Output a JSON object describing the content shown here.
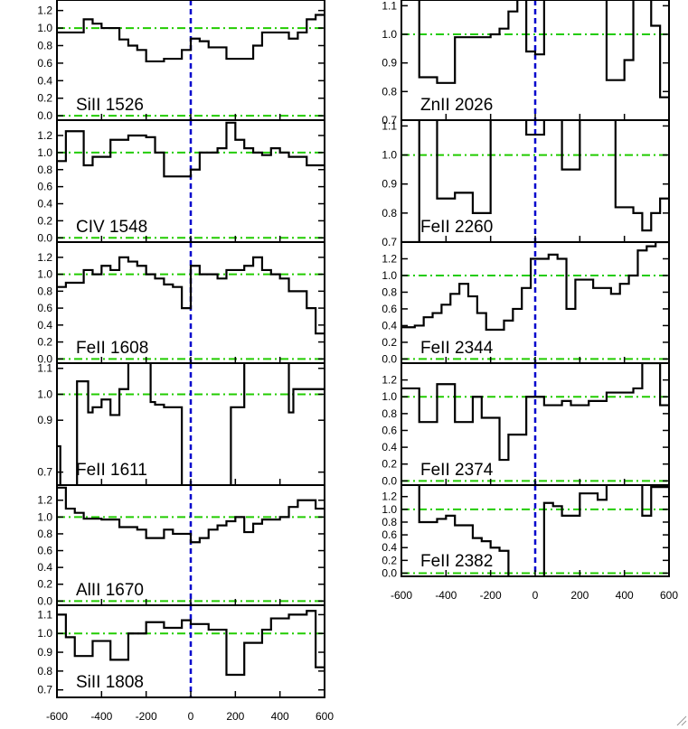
{
  "chart_data": {
    "type": "line",
    "style": {
      "spectrum_color": "#000000",
      "continuum_color": "#22cc00",
      "zero_velocity_color": "#0000cc"
    },
    "xlim": [
      -600,
      600
    ],
    "x_ticks": [
      -600,
      -400,
      -200,
      0,
      200,
      400,
      600
    ],
    "x_tick_labels": [
      "-600",
      "-400",
      "-200",
      "0",
      "200",
      "400",
      "600"
    ],
    "panels": [
      {
        "label": "SiII 1526",
        "column": "left",
        "ylim": [
          -0.05,
          1.32
        ],
        "y_ticks": [
          0.0,
          0.2,
          0.4,
          0.6,
          0.8,
          1.0,
          1.2
        ],
        "y_tick_labels": [
          "0.0",
          "0.2",
          "0.4",
          "0.6",
          "0.8",
          "1.0",
          "1.2"
        ],
        "continuum": [
          0.0,
          1.0
        ],
        "bins": [
          -600,
          -560,
          -520,
          -480,
          -440,
          -400,
          -360,
          -320,
          -280,
          -240,
          -200,
          -160,
          -120,
          -80,
          -40,
          0,
          40,
          80,
          120,
          160,
          200,
          240,
          280,
          320,
          360,
          400,
          440,
          480,
          520,
          560,
          600
        ],
        "flux": [
          0.95,
          0.95,
          0.95,
          1.1,
          1.05,
          1.0,
          1.0,
          0.87,
          0.8,
          0.75,
          0.62,
          0.62,
          0.65,
          0.65,
          0.75,
          0.88,
          0.85,
          0.78,
          0.78,
          0.65,
          0.65,
          0.65,
          0.8,
          0.95,
          0.95,
          0.95,
          0.88,
          0.95,
          1.1,
          1.15
        ]
      },
      {
        "label": "CIV 1548",
        "column": "left",
        "ylim": [
          -0.05,
          1.38
        ],
        "y_ticks": [
          0.0,
          0.2,
          0.4,
          0.6,
          0.8,
          1.0,
          1.2
        ],
        "y_tick_labels": [
          "0.0",
          "0.2",
          "0.4",
          "0.6",
          "0.8",
          "1.0",
          "1.2"
        ],
        "continuum": [
          0.0,
          1.0
        ],
        "bins": [
          -600,
          -560,
          -520,
          -480,
          -440,
          -400,
          -360,
          -320,
          -280,
          -240,
          -200,
          -160,
          -120,
          -80,
          -40,
          0,
          40,
          80,
          120,
          160,
          200,
          240,
          280,
          320,
          360,
          400,
          440,
          480,
          520,
          560,
          600
        ],
        "flux": [
          0.9,
          1.25,
          1.25,
          0.85,
          0.95,
          0.95,
          1.15,
          1.15,
          1.2,
          1.2,
          1.18,
          1.0,
          0.72,
          0.72,
          0.72,
          0.8,
          1.0,
          1.0,
          1.05,
          1.35,
          1.15,
          1.05,
          1.0,
          0.97,
          1.05,
          1.0,
          0.95,
          0.95,
          0.85,
          0.85
        ]
      },
      {
        "label": "FeII 1608",
        "column": "left",
        "ylim": [
          -0.05,
          1.38
        ],
        "y_ticks": [
          0.0,
          0.2,
          0.4,
          0.6,
          0.8,
          1.0,
          1.2
        ],
        "y_tick_labels": [
          "0.0",
          "0.2",
          "0.4",
          "0.6",
          "0.8",
          "1.0",
          "1.2"
        ],
        "continuum": [
          0.0,
          1.0
        ],
        "bins": [
          -600,
          -560,
          -520,
          -480,
          -440,
          -400,
          -360,
          -320,
          -280,
          -240,
          -200,
          -160,
          -120,
          -80,
          -40,
          0,
          40,
          80,
          120,
          160,
          200,
          240,
          280,
          320,
          360,
          400,
          440,
          480,
          520,
          560,
          600
        ],
        "flux": [
          0.85,
          0.9,
          0.9,
          1.05,
          1.0,
          1.1,
          1.05,
          1.2,
          1.15,
          1.1,
          1.0,
          0.95,
          0.88,
          0.85,
          0.6,
          1.1,
          1.0,
          1.0,
          0.95,
          1.05,
          1.05,
          1.1,
          1.2,
          1.05,
          1.0,
          0.95,
          0.8,
          0.8,
          0.6,
          0.3
        ]
      },
      {
        "label": "FeII 1611",
        "column": "left",
        "ylim": [
          0.65,
          1.12
        ],
        "y_ticks": [
          0.7,
          0.9,
          1.0,
          1.1
        ],
        "y_tick_labels": [
          "0.7",
          "0.9",
          "1.0",
          "1.1"
        ],
        "continuum": [
          1.0
        ],
        "bins": [
          -600,
          -585,
          -560,
          -510,
          -460,
          -440,
          -400,
          -360,
          -320,
          -280,
          -240,
          -180,
          -160,
          -120,
          -100,
          -40,
          -20,
          40,
          80,
          120,
          180,
          240,
          300,
          340,
          400,
          440,
          460,
          520,
          570,
          600
        ],
        "flux": [
          0.8,
          0.6,
          0.6,
          1.05,
          0.93,
          0.95,
          0.98,
          0.92,
          1.02,
          1.2,
          1.2,
          0.97,
          0.96,
          0.95,
          0.95,
          0.5,
          0.5,
          0.5,
          0.5,
          0.5,
          0.95,
          1.2,
          1.2,
          1.2,
          1.2,
          0.93,
          1.02,
          1.02,
          1.02
        ]
      },
      {
        "label": "AlII 1670",
        "column": "left",
        "ylim": [
          -0.05,
          1.38
        ],
        "y_ticks": [
          0.0,
          0.2,
          0.4,
          0.6,
          0.8,
          1.0,
          1.2
        ],
        "y_tick_labels": [
          "0.0",
          "0.2",
          "0.4",
          "0.6",
          "0.8",
          "1.0",
          "1.2"
        ],
        "continuum": [
          0.0,
          1.0
        ],
        "bins": [
          -600,
          -560,
          -520,
          -480,
          -440,
          -400,
          -360,
          -320,
          -280,
          -240,
          -200,
          -160,
          -120,
          -80,
          -40,
          0,
          40,
          80,
          120,
          160,
          200,
          240,
          280,
          320,
          360,
          400,
          440,
          480,
          520,
          560,
          600
        ],
        "flux": [
          1.35,
          1.1,
          1.05,
          0.98,
          0.98,
          0.97,
          0.97,
          0.88,
          0.88,
          0.85,
          0.75,
          0.75,
          0.85,
          0.8,
          0.8,
          0.7,
          0.75,
          0.85,
          0.9,
          0.95,
          1.0,
          0.82,
          0.92,
          0.97,
          0.97,
          1.0,
          1.12,
          1.2,
          1.2,
          1.1
        ]
      },
      {
        "label": "SiII 1808",
        "column": "left",
        "ylim": [
          0.66,
          1.15
        ],
        "y_ticks": [
          0.7,
          0.8,
          0.9,
          1.0,
          1.1
        ],
        "y_tick_labels": [
          "0.7",
          "0.8",
          "0.9",
          "1.0",
          "1.1"
        ],
        "continuum": [
          1.0
        ],
        "bins": [
          -600,
          -560,
          -520,
          -480,
          -440,
          -400,
          -360,
          -320,
          -280,
          -240,
          -200,
          -160,
          -120,
          -80,
          -40,
          0,
          40,
          80,
          120,
          160,
          200,
          240,
          280,
          320,
          360,
          400,
          440,
          480,
          520,
          560,
          600
        ],
        "flux": [
          1.1,
          0.98,
          0.88,
          0.88,
          0.96,
          0.96,
          0.86,
          0.86,
          1.0,
          1.0,
          1.06,
          1.06,
          1.03,
          1.03,
          1.07,
          1.05,
          1.05,
          1.02,
          1.02,
          0.78,
          0.78,
          0.95,
          0.95,
          1.02,
          1.08,
          1.08,
          1.1,
          1.1,
          1.12,
          0.82
        ]
      },
      {
        "label": "ZnII 2026",
        "column": "right",
        "ylim": [
          0.7,
          1.12
        ],
        "y_ticks": [
          0.7,
          0.8,
          0.9,
          1.0,
          1.1
        ],
        "y_tick_labels": [
          "0.7",
          "0.8",
          "0.9",
          "1.0",
          "1.1"
        ],
        "continuum": [
          1.0
        ],
        "bins": [
          -600,
          -560,
          -520,
          -480,
          -440,
          -400,
          -360,
          -320,
          -280,
          -240,
          -200,
          -160,
          -120,
          -80,
          -40,
          0,
          40,
          80,
          120,
          160,
          200,
          240,
          280,
          320,
          360,
          400,
          440,
          480,
          520,
          560,
          600
        ],
        "flux": [
          1.15,
          1.15,
          0.85,
          0.85,
          0.83,
          0.83,
          0.99,
          0.99,
          0.99,
          0.99,
          1.0,
          1.02,
          1.08,
          1.15,
          0.94,
          0.93,
          1.15,
          1.15,
          1.15,
          1.15,
          1.15,
          1.15,
          1.15,
          0.84,
          0.84,
          0.91,
          1.15,
          1.15,
          1.03,
          0.78
        ]
      },
      {
        "label": "FeII 2260",
        "column": "right",
        "ylim": [
          0.7,
          1.12
        ],
        "y_ticks": [
          0.7,
          0.8,
          0.9,
          1.0,
          1.1
        ],
        "y_tick_labels": [
          "0.7",
          "0.8",
          "0.9",
          "1.0",
          "1.1"
        ],
        "continuum": [
          1.0
        ],
        "bins": [
          -600,
          -560,
          -520,
          -480,
          -440,
          -400,
          -360,
          -320,
          -280,
          -240,
          -200,
          -160,
          -120,
          -80,
          -40,
          0,
          40,
          80,
          120,
          160,
          200,
          240,
          280,
          320,
          360,
          400,
          440,
          480,
          520,
          560,
          600
        ],
        "flux": [
          0.7,
          0.7,
          1.15,
          1.15,
          0.85,
          0.85,
          0.87,
          0.87,
          0.8,
          0.8,
          1.15,
          1.15,
          1.15,
          1.15,
          1.07,
          1.07,
          1.15,
          1.15,
          0.95,
          0.95,
          1.15,
          1.15,
          1.15,
          1.15,
          0.82,
          0.82,
          0.8,
          0.74,
          0.8,
          0.85
        ]
      },
      {
        "label": "FeII 2344",
        "column": "right",
        "ylim": [
          -0.05,
          1.4
        ],
        "y_ticks": [
          0.0,
          0.2,
          0.4,
          0.6,
          0.8,
          1.0,
          1.2
        ],
        "y_tick_labels": [
          "0.0",
          "0.2",
          "0.4",
          "0.6",
          "0.8",
          "1.0",
          "1.2"
        ],
        "continuum": [
          0.0,
          1.0
        ],
        "bins": [
          -600,
          -580,
          -540,
          -500,
          -460,
          -420,
          -380,
          -340,
          -300,
          -260,
          -220,
          -180,
          -140,
          -100,
          -60,
          -20,
          20,
          60,
          100,
          140,
          180,
          220,
          260,
          300,
          340,
          380,
          420,
          460,
          500,
          540,
          580,
          600
        ],
        "flux": [
          0.38,
          0.38,
          0.4,
          0.5,
          0.55,
          0.65,
          0.78,
          0.9,
          0.75,
          0.55,
          0.35,
          0.35,
          0.46,
          0.6,
          0.85,
          1.2,
          1.2,
          1.25,
          1.2,
          0.6,
          0.95,
          0.95,
          0.85,
          0.85,
          0.78,
          0.9,
          1.0,
          1.3,
          1.35,
          1.4,
          1.4
        ]
      },
      {
        "label": "FeII 2374",
        "column": "right",
        "ylim": [
          -0.05,
          1.4
        ],
        "y_ticks": [
          0.0,
          0.2,
          0.4,
          0.6,
          0.8,
          1.0,
          1.2
        ],
        "y_tick_labels": [
          "0.0",
          "0.2",
          "0.4",
          "0.6",
          "0.8",
          "1.0",
          "1.2"
        ],
        "continuum": [
          0.0,
          1.0
        ],
        "bins": [
          -600,
          -560,
          -520,
          -480,
          -440,
          -400,
          -360,
          -320,
          -280,
          -240,
          -200,
          -160,
          -120,
          -80,
          -40,
          0,
          40,
          80,
          120,
          160,
          200,
          240,
          280,
          320,
          360,
          400,
          440,
          480,
          520,
          560,
          600
        ],
        "flux": [
          1.1,
          1.1,
          0.7,
          0.7,
          1.15,
          1.15,
          0.7,
          0.7,
          1.0,
          0.75,
          0.75,
          0.25,
          0.55,
          0.55,
          1.0,
          1.0,
          0.9,
          0.9,
          0.95,
          0.9,
          0.9,
          0.95,
          0.95,
          1.05,
          1.05,
          1.05,
          1.1,
          1.4,
          1.4,
          0.9
        ]
      },
      {
        "label": "FeII 2382",
        "column": "right",
        "ylim": [
          -0.05,
          1.38
        ],
        "y_ticks": [
          0.0,
          0.2,
          0.4,
          0.6,
          0.8,
          1.0,
          1.2
        ],
        "y_tick_labels": [
          "0.0",
          "0.2",
          "0.4",
          "0.6",
          "0.8",
          "1.0",
          "1.2"
        ],
        "continuum": [
          0.0,
          1.0
        ],
        "bins": [
          -600,
          -560,
          -520,
          -480,
          -440,
          -400,
          -360,
          -320,
          -280,
          -240,
          -200,
          -160,
          -120,
          -80,
          -40,
          0,
          40,
          80,
          120,
          160,
          200,
          240,
          280,
          320,
          360,
          400,
          440,
          480,
          520,
          560,
          600
        ],
        "flux": [
          1.4,
          1.4,
          0.8,
          0.8,
          0.85,
          0.9,
          0.75,
          0.75,
          0.55,
          0.5,
          0.4,
          0.35,
          -0.1,
          -0.1,
          -0.1,
          -0.1,
          1.1,
          1.05,
          0.9,
          0.9,
          1.25,
          1.25,
          1.15,
          1.4,
          1.4,
          1.4,
          1.4,
          0.9,
          1.35,
          1.35
        ]
      }
    ]
  }
}
